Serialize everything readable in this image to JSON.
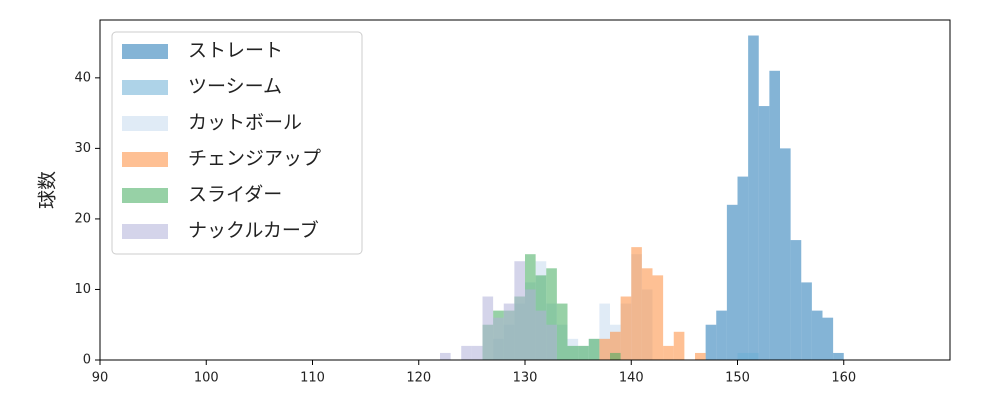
{
  "chart_data": {
    "type": "histogram",
    "ylabel": "球数",
    "xlim": [
      90,
      170
    ],
    "ylim": [
      0,
      48.2
    ],
    "xticks": [
      90,
      100,
      110,
      120,
      130,
      140,
      150,
      160
    ],
    "yticks": [
      0,
      10,
      20,
      30,
      40
    ],
    "legend": "upper left",
    "alpha": 0.55,
    "series": [
      {
        "name": "ストレート",
        "color": "#1f77b4",
        "bins": [
          147,
          148,
          149,
          150,
          151,
          152,
          153,
          154,
          155,
          156,
          157,
          158,
          159,
          160
        ],
        "values": [
          5,
          7,
          22,
          26,
          46,
          36,
          41,
          30,
          17,
          11,
          7,
          6,
          1
        ]
      },
      {
        "name": "ツーシーム",
        "color": "#6baed6",
        "bins": [
          150,
          151,
          152
        ],
        "values": [
          1,
          1
        ]
      },
      {
        "name": "カットボール",
        "color": "#c6dbef",
        "bins": [
          127,
          128,
          129,
          130,
          131,
          132,
          133,
          134,
          135,
          136,
          137,
          138,
          139,
          140,
          141,
          142
        ],
        "values": [
          3,
          5,
          8,
          11,
          14,
          8,
          5,
          3,
          2,
          3,
          8,
          5,
          8,
          15,
          10
        ]
      },
      {
        "name": "チェンジアップ",
        "color": "#fd8d3c",
        "bins": [
          137,
          138,
          139,
          140,
          141,
          142,
          143,
          144,
          145,
          146,
          147
        ],
        "values": [
          3,
          4,
          9,
          16,
          13,
          12,
          2,
          4,
          0,
          1
        ]
      },
      {
        "name": "スライダー",
        "color": "#41ab5d",
        "bins": [
          126,
          127,
          128,
          129,
          130,
          131,
          132,
          133,
          134,
          135,
          136,
          137,
          138,
          139
        ],
        "values": [
          5,
          7,
          7,
          9,
          15,
          12,
          13,
          8,
          2,
          2,
          3,
          0,
          1
        ]
      },
      {
        "name": "ナックルカーブ",
        "color": "#b0b0d8",
        "bins": [
          122,
          123,
          124,
          125,
          126,
          127,
          128,
          129,
          130,
          131,
          132,
          133
        ],
        "values": [
          1,
          0,
          2,
          2,
          9,
          6,
          8,
          14,
          10,
          7,
          5
        ]
      }
    ]
  }
}
